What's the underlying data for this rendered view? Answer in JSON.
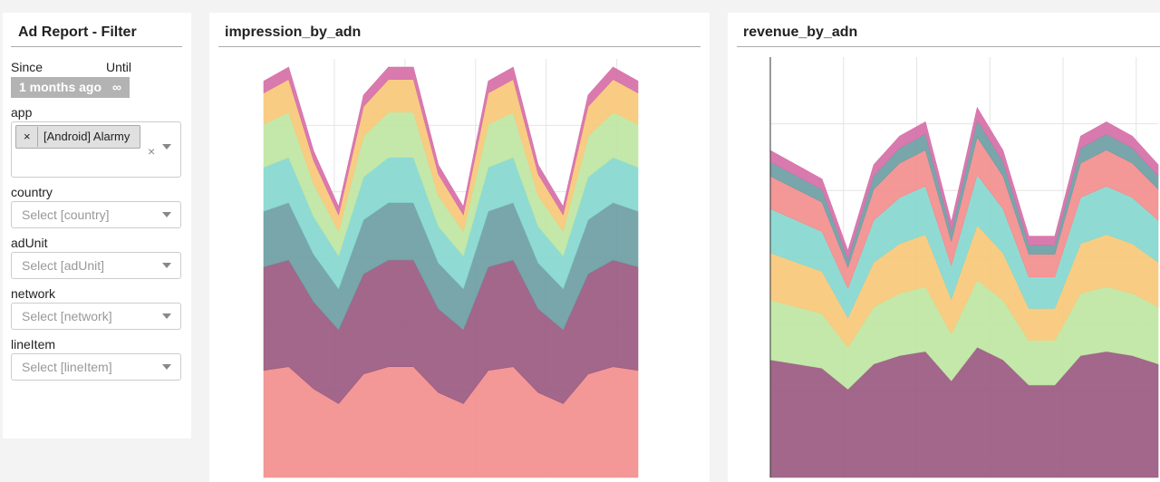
{
  "filter": {
    "title": "Ad Report - Filter",
    "since_label": "Since",
    "until_label": "Until",
    "since_value": "1 months ago",
    "until_value": "∞",
    "fields": [
      {
        "label": "app",
        "tag_remove": "×",
        "tag": "[Android] Alarmy",
        "clear": "×"
      },
      {
        "label": "country",
        "placeholder": "Select [country]"
      },
      {
        "label": "adUnit",
        "placeholder": "Select [adUnit]"
      },
      {
        "label": "network",
        "placeholder": "Select [network]"
      },
      {
        "label": "lineItem",
        "placeholder": "Select [lineItem]"
      }
    ]
  },
  "chart_data": [
    {
      "type": "area",
      "stacked": true,
      "grid": true,
      "title": "impression_by_adn",
      "categories": [
        null,
        null,
        null,
        null,
        null,
        null,
        null,
        null,
        null,
        null,
        null,
        null,
        null,
        null,
        null,
        null
      ],
      "ylim": [
        0,
        102
      ],
      "series": [
        {
          "color": "#f28e8e",
          "values": [
            26.1,
            27,
            21.6,
            18,
            25.2,
            27,
            27,
            20.7,
            18,
            26.1,
            27,
            20.7,
            18,
            25.2,
            27,
            26.1
          ]
        },
        {
          "color": "#9a5a80",
          "values": [
            25.2,
            26,
            21.2,
            18,
            24.4,
            26,
            26,
            20.4,
            18,
            25.2,
            26,
            20.4,
            18,
            24.4,
            26,
            25.2
          ]
        },
        {
          "color": "#6c9ea4",
          "values": [
            13.6,
            14,
            11.6,
            10,
            13.2,
            14,
            14,
            11.2,
            10,
            13.6,
            14,
            11.2,
            10,
            13.2,
            14,
            13.6
          ]
        },
        {
          "color": "#86d8cf",
          "values": [
            10.7,
            11,
            9.2,
            8,
            10.4,
            11,
            11,
            8.9,
            8,
            10.7,
            11,
            8.9,
            8,
            10.4,
            11,
            10.7
          ]
        },
        {
          "color": "#bfe6a2",
          "values": [
            10.5,
            11,
            8,
            6,
            10,
            11,
            11,
            7.5,
            6,
            10.5,
            11,
            7.5,
            6,
            10,
            11,
            10.5
          ]
        },
        {
          "color": "#f8c878",
          "values": [
            7.6,
            8,
            5.6,
            4,
            7.2,
            8,
            8,
            5.2,
            4,
            7.6,
            8,
            5.2,
            4,
            7.2,
            8,
            7.6
          ]
        },
        {
          "color": "#d66fa8",
          "values": [
            2.9,
            3,
            2.4,
            2,
            2.8,
            3,
            3,
            2.3,
            2,
            2.9,
            3,
            2.3,
            2,
            2.8,
            3,
            2.9
          ]
        }
      ]
    },
    {
      "type": "area",
      "stacked": true,
      "grid": true,
      "title": "revenue_by_adn",
      "categories": [
        null,
        null,
        null,
        null,
        null,
        null,
        null,
        null,
        null,
        null,
        null,
        null,
        null,
        null,
        null,
        null
      ],
      "ylim": [
        0,
        100
      ],
      "series": [
        {
          "color": "#9a5a80",
          "values": [
            28,
            27,
            26,
            21,
            27,
            29,
            30,
            23,
            31,
            28,
            22,
            22,
            29,
            30,
            29,
            27
          ]
        },
        {
          "color": "#bfe6a2",
          "values": [
            14.2,
            13.6,
            13,
            10,
            13.6,
            14.8,
            15.4,
            11.2,
            16,
            14.2,
            10.6,
            10.6,
            14.8,
            15.4,
            14.8,
            13.6
          ]
        },
        {
          "color": "#f8c878",
          "values": [
            11.2,
            10.6,
            10,
            7,
            10.6,
            11.8,
            12.4,
            8.2,
            13,
            11.2,
            7.6,
            7.6,
            11.8,
            12.4,
            11.8,
            10.6
          ]
        },
        {
          "color": "#86d8cf",
          "values": [
            10.5,
            10,
            9.5,
            7,
            10,
            11,
            11.5,
            8,
            12,
            10.5,
            7.5,
            7.5,
            11,
            11.5,
            11,
            10
          ]
        },
        {
          "color": "#f28e8e",
          "values": [
            7.8,
            7.4,
            7,
            5,
            7.4,
            8.2,
            8.6,
            5.8,
            9,
            7.8,
            5.4,
            5.4,
            8.2,
            8.6,
            8.2,
            7.4
          ]
        },
        {
          "color": "#6c9ea4",
          "values": [
            3.4,
            3.2,
            3,
            2,
            3.2,
            3.6,
            3.8,
            2.4,
            4,
            3.4,
            2.2,
            2.2,
            3.6,
            3.8,
            3.6,
            3.2
          ]
        },
        {
          "color": "#d66fa8",
          "values": [
            2.7,
            2.6,
            2.5,
            2,
            2.6,
            2.8,
            2.9,
            2.2,
            3,
            2.7,
            2.1,
            2.1,
            2.8,
            2.9,
            2.8,
            2.6
          ]
        }
      ]
    }
  ]
}
